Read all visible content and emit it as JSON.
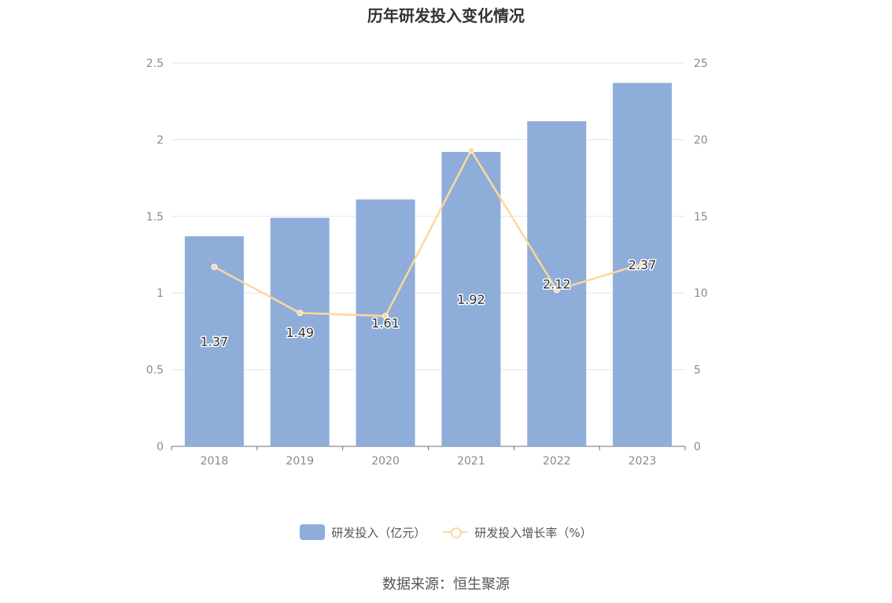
{
  "chart_data": {
    "type": "bar",
    "title": "历年研发投入变化情况",
    "categories": [
      "2018",
      "2019",
      "2020",
      "2021",
      "2022",
      "2023"
    ],
    "series": [
      {
        "name": "研发投入（亿元）",
        "type": "bar",
        "axis": "left",
        "values": [
          1.37,
          1.49,
          1.61,
          1.92,
          2.12,
          2.37
        ],
        "labels": [
          "1.37",
          "1.49",
          "1.61",
          "1.92",
          "2.12",
          "2.37"
        ],
        "color": "#8eadd9"
      },
      {
        "name": "研发投入增长率（%）",
        "type": "line",
        "axis": "right",
        "values": [
          11.7,
          8.7,
          8.5,
          19.3,
          10.2,
          11.9
        ],
        "color": "#fcd89c"
      }
    ],
    "y_left": {
      "min": 0,
      "max": 2.5,
      "ticks": [
        "0",
        "0.5",
        "1",
        "1.5",
        "2",
        "2.5"
      ]
    },
    "y_right": {
      "min": 0,
      "max": 25,
      "ticks": [
        "0",
        "5",
        "10",
        "15",
        "20",
        "25"
      ]
    },
    "grid": true,
    "legend_position": "bottom"
  },
  "source": "数据来源：恒生聚源"
}
